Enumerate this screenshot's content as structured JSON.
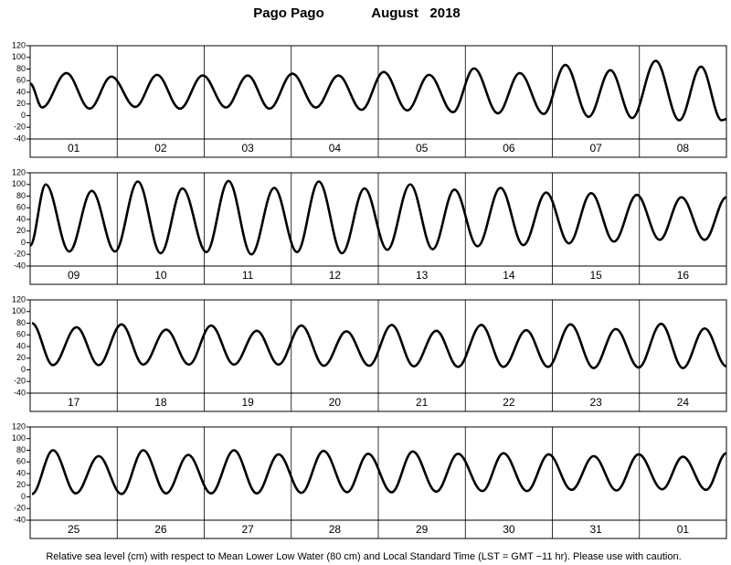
{
  "title": "Pago Pago",
  "subtitle": "August   2018",
  "footnote": "Relative sea level (cm) with respect to Mean Lower Low Water (80 cm) and Local Standard Time (LST = GMT −11 hr). Please use with caution.",
  "chart_data": [
    {
      "type": "line",
      "color": "#000000",
      "categories": [
        "01",
        "02",
        "03",
        "04",
        "05",
        "06",
        "07",
        "08"
      ],
      "xlim": [
        0,
        192
      ],
      "ylim": [
        -40,
        120
      ],
      "yticks": [
        -40,
        -20,
        0,
        20,
        40,
        60,
        80,
        100,
        120
      ],
      "x": [
        0,
        3.3,
        10,
        16.4,
        22.4,
        29,
        35,
        41.3,
        47.6,
        54,
        60,
        66,
        72.3,
        78.8,
        85,
        91.4,
        97.5,
        104,
        110,
        116.6,
        122.4,
        129,
        135,
        141.6,
        147.6,
        154,
        160,
        166,
        172.5,
        179,
        185,
        190.7,
        192
      ],
      "values": [
        55,
        14,
        73,
        12,
        67,
        15,
        70,
        12,
        69,
        14,
        69,
        12,
        72,
        14,
        69,
        10,
        75,
        9,
        70,
        6,
        81,
        4,
        73,
        3,
        87,
        -2,
        78,
        -4,
        94,
        -8,
        84,
        -8,
        -6
      ]
    },
    {
      "type": "line",
      "color": "#000000",
      "categories": [
        "09",
        "10",
        "11",
        "12",
        "13",
        "14",
        "15",
        "16"
      ],
      "xlim": [
        0,
        192
      ],
      "ylim": [
        -40,
        120
      ],
      "yticks": [
        -40,
        -20,
        0,
        20,
        40,
        60,
        80,
        100,
        120
      ],
      "x": [
        0,
        4.3,
        10.8,
        17,
        23.4,
        29.7,
        36,
        42,
        48.6,
        54.7,
        61,
        67.3,
        73.6,
        79.6,
        86,
        92.2,
        98.5,
        104.8,
        111,
        117,
        123.4,
        129.7,
        136,
        142.3,
        148.6,
        154.7,
        161,
        167.3,
        173.6,
        179.6,
        186,
        192
      ],
      "values": [
        -5,
        100,
        -15,
        89,
        -15,
        105,
        -18,
        93,
        -16,
        106,
        -20,
        94,
        -16,
        105,
        -18,
        93,
        -12,
        100,
        -11,
        91,
        -6,
        94,
        -4,
        86,
        -1,
        85,
        2,
        82,
        5,
        78,
        5,
        78
      ]
    },
    {
      "type": "line",
      "color": "#000000",
      "categories": [
        "17",
        "18",
        "19",
        "20",
        "21",
        "22",
        "23",
        "24"
      ],
      "xlim": [
        0,
        192
      ],
      "ylim": [
        -40,
        120
      ],
      "yticks": [
        -40,
        -20,
        0,
        20,
        40,
        60,
        80,
        100,
        120
      ],
      "x": [
        0.5,
        6.3,
        12.8,
        18.9,
        25.2,
        31.2,
        37.5,
        43.8,
        49.9,
        56.2,
        62.5,
        68.5,
        74.8,
        81,
        87.2,
        93.5,
        99.7,
        105.8,
        112,
        118,
        124.4,
        130.5,
        136.8,
        142.8,
        149,
        155.4,
        161.5,
        167.8,
        174,
        180,
        186,
        192
      ],
      "values": [
        80,
        8,
        73,
        8,
        78,
        9,
        69,
        9,
        76,
        9,
        67,
        9,
        76,
        7,
        66,
        7,
        77,
        6,
        67,
        5,
        77,
        5,
        68,
        5,
        78,
        3,
        70,
        4,
        79,
        3,
        71,
        6
      ]
    },
    {
      "type": "line",
      "color": "#000000",
      "categories": [
        "25",
        "26",
        "27",
        "28",
        "29",
        "30",
        "31",
        "01"
      ],
      "xlim": [
        0,
        192
      ],
      "ylim": [
        -40,
        120
      ],
      "yticks": [
        -40,
        -20,
        0,
        20,
        40,
        60,
        80,
        100,
        120
      ],
      "x": [
        0.5,
        6.3,
        12.6,
        18.9,
        25.2,
        31.2,
        37.5,
        43.6,
        49.9,
        56.2,
        62.5,
        68.5,
        74.8,
        80.9,
        87.4,
        93.2,
        99.7,
        105.5,
        112,
        118,
        124.7,
        130.5,
        137,
        143,
        149.3,
        155.4,
        161.7,
        167.8,
        174.3,
        180,
        186.4,
        192
      ],
      "values": [
        5,
        80,
        6,
        70,
        5,
        80,
        6,
        72,
        6,
        80,
        6,
        73,
        7,
        79,
        8,
        74,
        8,
        78,
        9,
        74,
        10,
        75,
        10,
        73,
        12,
        70,
        11,
        73,
        13,
        69,
        12,
        75
      ]
    }
  ]
}
